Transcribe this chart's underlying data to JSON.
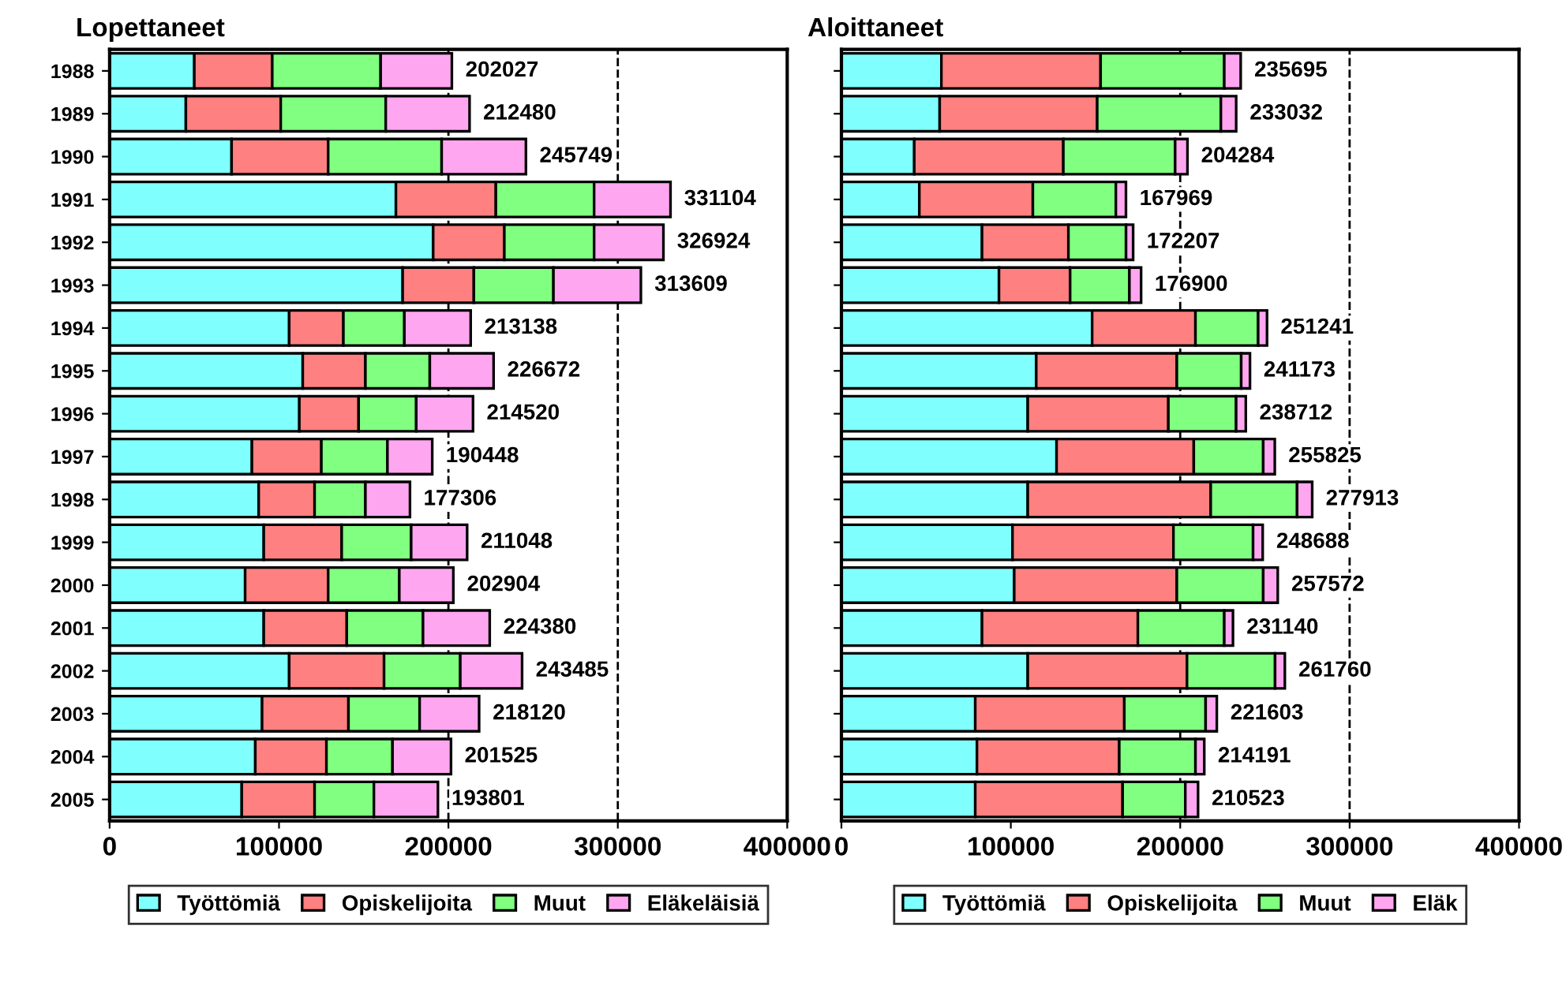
{
  "chart_data": [
    {
      "type": "bar",
      "title": "Lopettaneet",
      "orientation": "horizontal",
      "stacked": true,
      "categories": [
        "1988",
        "1989",
        "1990",
        "1991",
        "1992",
        "1993",
        "1994",
        "1995",
        "1996",
        "1997",
        "1998",
        "1999",
        "2000",
        "2001",
        "2002",
        "2003",
        "2004",
        "2005"
      ],
      "series": [
        {
          "name": "Työttömiä",
          "color": "#80ffff",
          "values": [
            50000,
            45000,
            72000,
            169000,
            191000,
            173000,
            106000,
            114000,
            112000,
            84000,
            88000,
            91000,
            80000,
            91000,
            106000,
            90000,
            86000,
            78000
          ]
        },
        {
          "name": "Opiskelijoita",
          "color": "#ff8080",
          "values": [
            46000,
            56000,
            57000,
            59000,
            42000,
            42000,
            32000,
            37000,
            35000,
            41000,
            33000,
            46000,
            49000,
            49000,
            56000,
            51000,
            42000,
            43000
          ]
        },
        {
          "name": "Muut",
          "color": "#80ff80",
          "values": [
            64000,
            62000,
            67000,
            58000,
            53000,
            47000,
            36000,
            38000,
            34000,
            39000,
            30000,
            41000,
            42000,
            45000,
            45000,
            42000,
            39000,
            35000
          ]
        },
        {
          "name": "Eläkeläisiä",
          "color": "#ffa6f0",
          "values": [
            42027,
            49480,
            49749,
            45104,
            40924,
            51609,
            39138,
            37672,
            33520,
            26448,
            26306,
            33048,
            31904,
            39380,
            36485,
            35120,
            34525,
            37801
          ]
        }
      ],
      "totals": [
        "202027",
        "212480",
        "245749",
        "331104",
        "326924",
        "313609",
        "213138",
        "226672",
        "214520",
        "190448",
        "177306",
        "211048",
        "202904",
        "224380",
        "243485",
        "218120",
        "201525",
        "193801"
      ],
      "xlim": [
        0,
        400000
      ],
      "xticks": [
        0,
        100000,
        200000,
        300000,
        400000
      ],
      "ref_lines": [
        {
          "axis": "x",
          "value": 200000,
          "line_style": "dashed",
          "color": "#000000"
        },
        {
          "axis": "x",
          "value": 300000,
          "line_style": "dashed",
          "color": "#000000"
        }
      ],
      "legend": "bottom"
    },
    {
      "type": "bar",
      "title": "Aloittaneet",
      "orientation": "horizontal",
      "stacked": true,
      "categories": [
        "1988",
        "1989",
        "1990",
        "1991",
        "1992",
        "1993",
        "1994",
        "1995",
        "1996",
        "1997",
        "1998",
        "1999",
        "2000",
        "2001",
        "2002",
        "2003",
        "2004",
        "2005"
      ],
      "series": [
        {
          "name": "Työttömiä",
          "color": "#80ffff",
          "values": [
            59000,
            58000,
            43000,
            46000,
            83000,
            93000,
            148000,
            115000,
            110000,
            127000,
            110000,
            101000,
            102000,
            83000,
            110000,
            79000,
            80000,
            79000
          ]
        },
        {
          "name": "Opiskelijoita",
          "color": "#ff8080",
          "values": [
            94000,
            93000,
            88000,
            67000,
            51000,
            42000,
            61000,
            83000,
            83000,
            81000,
            108000,
            95000,
            96000,
            92000,
            94000,
            88000,
            84000,
            87000
          ]
        },
        {
          "name": "Muut",
          "color": "#80ff80",
          "values": [
            73000,
            73000,
            66000,
            49000,
            34000,
            35000,
            37000,
            38000,
            40000,
            41000,
            51000,
            47000,
            51000,
            51000,
            52000,
            48000,
            45000,
            37000
          ]
        },
        {
          "name": "Eläk",
          "color": "#ffa6f0",
          "values": [
            9695,
            9032,
            7284,
            5969,
            4207,
            6900,
            5241,
            5173,
            5712,
            6825,
            8913,
            5688,
            8572,
            5140,
            5760,
            6603,
            5191,
            7523
          ]
        }
      ],
      "totals": [
        "235695",
        "233032",
        "204284",
        "167969",
        "172207",
        "176900",
        "251241",
        "241173",
        "238712",
        "255825",
        "277913",
        "248688",
        "257572",
        "231140",
        "261760",
        "221603",
        "214191",
        "210523"
      ],
      "xlim": [
        0,
        400000
      ],
      "xticks": [
        0,
        100000,
        200000,
        300000,
        400000
      ],
      "tick_labels": "x",
      "ref_lines": [
        {
          "axis": "x",
          "value": 200000,
          "line_style": "dashed",
          "color": "#000000"
        },
        {
          "axis": "x",
          "value": 300000,
          "line_style": "dashed",
          "color": "#000000"
        }
      ],
      "legend": "bottom"
    }
  ]
}
